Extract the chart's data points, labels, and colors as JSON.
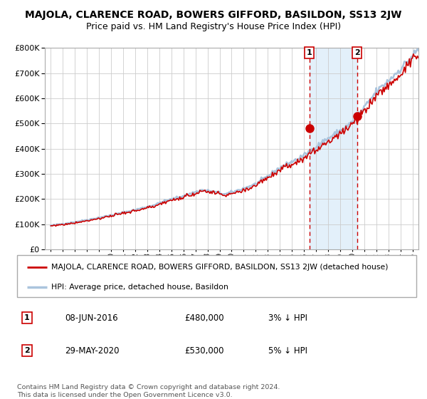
{
  "title": "MAJOLA, CLARENCE ROAD, BOWERS GIFFORD, BASILDON, SS13 2JW",
  "subtitle": "Price paid vs. HM Land Registry's House Price Index (HPI)",
  "legend_line1": "MAJOLA, CLARENCE ROAD, BOWERS GIFFORD, BASILDON, SS13 2JW (detached house)",
  "legend_line2": "HPI: Average price, detached house, Basildon",
  "annotation1_date": "08-JUN-2016",
  "annotation1_price": "£480,000",
  "annotation1_hpi": "3% ↓ HPI",
  "annotation2_date": "29-MAY-2020",
  "annotation2_price": "£530,000",
  "annotation2_hpi": "5% ↓ HPI",
  "footnote1": "Contains HM Land Registry data © Crown copyright and database right 2024.",
  "footnote2": "This data is licensed under the Open Government Licence v3.0.",
  "sale1_year": 2016.44,
  "sale1_value": 480000,
  "sale2_year": 2020.41,
  "sale2_value": 530000,
  "hpi_color": "#aac4dd",
  "price_color": "#cc0000",
  "shade_color": "#d8eaf8",
  "plot_bg": "#ffffff",
  "grid_color": "#cccccc",
  "ylim": [
    0,
    800000
  ],
  "yticks": [
    0,
    100000,
    200000,
    300000,
    400000,
    500000,
    600000,
    700000,
    800000
  ],
  "xlim_start": 1994.5,
  "xlim_end": 2025.5,
  "years": [
    1995,
    1996,
    1997,
    1998,
    1999,
    2000,
    2001,
    2002,
    2003,
    2004,
    2005,
    2006,
    2007,
    2008,
    2009,
    2010,
    2011,
    2012,
    2013,
    2014,
    2015,
    2016,
    2017,
    2018,
    2019,
    2020,
    2021,
    2022,
    2023,
    2024,
    2025
  ]
}
